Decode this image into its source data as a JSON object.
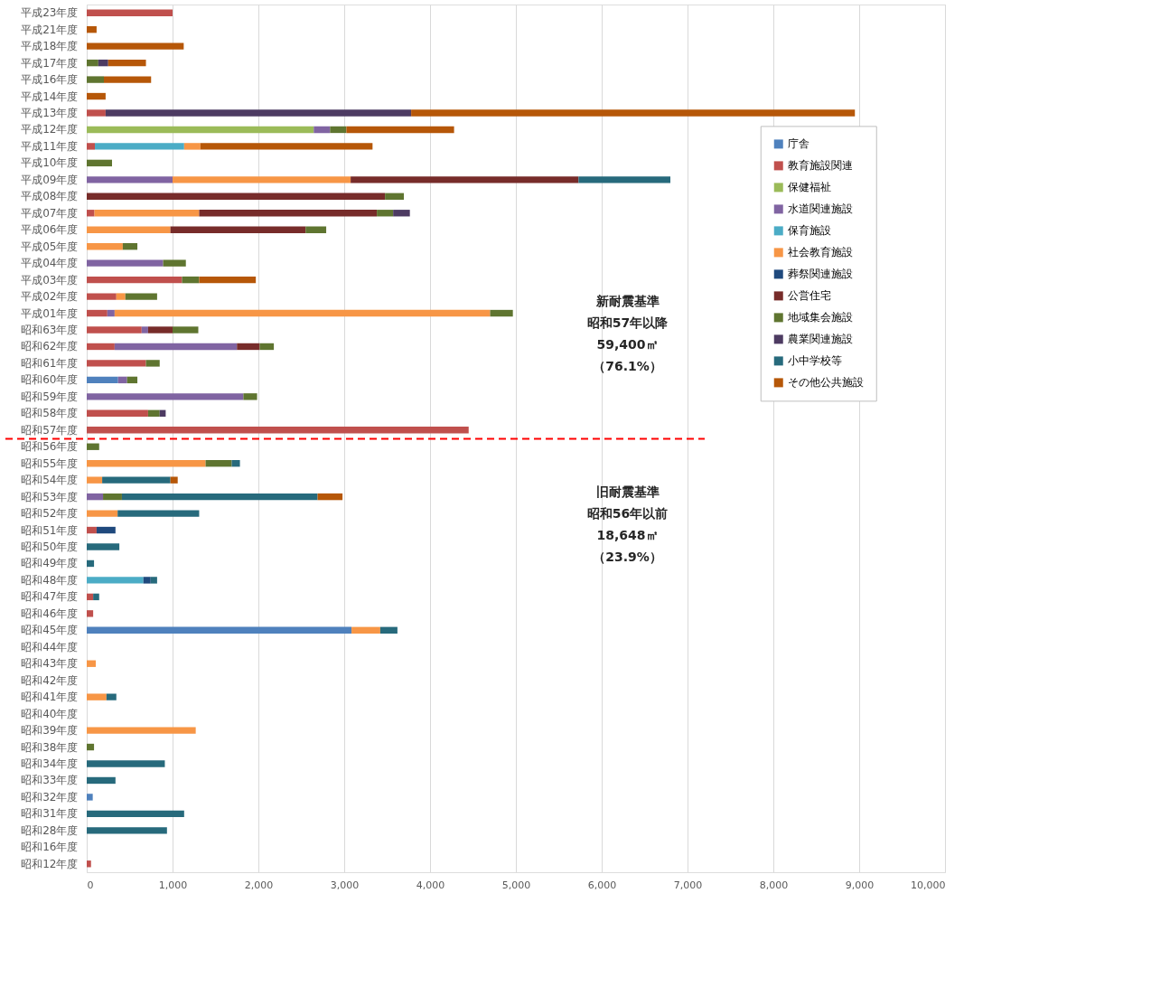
{
  "chart_data": {
    "type": "bar",
    "orientation": "horizontal",
    "stacked": true,
    "categories": [
      "平成23年度",
      "平成21年度",
      "平成18年度",
      "平成17年度",
      "平成16年度",
      "平成14年度",
      "平成13年度",
      "平成12年度",
      "平成11年度",
      "平成10年度",
      "平成09年度",
      "平成08年度",
      "平成07年度",
      "平成06年度",
      "平成05年度",
      "平成04年度",
      "平成03年度",
      "平成02年度",
      "平成01年度",
      "昭和63年度",
      "昭和62年度",
      "昭和61年度",
      "昭和60年度",
      "昭和59年度",
      "昭和58年度",
      "昭和57年度",
      "昭和56年度",
      "昭和55年度",
      "昭和54年度",
      "昭和53年度",
      "昭和52年度",
      "昭和51年度",
      "昭和50年度",
      "昭和49年度",
      "昭和48年度",
      "昭和47年度",
      "昭和46年度",
      "昭和45年度",
      "昭和44年度",
      "昭和43年度",
      "昭和42年度",
      "昭和41年度",
      "昭和40年度",
      "昭和39年度",
      "昭和38年度",
      "昭和34年度",
      "昭和33年度",
      "昭和32年度",
      "昭和31年度",
      "昭和28年度",
      "昭和16年度",
      "昭和12年度"
    ],
    "series": [
      {
        "name": "庁舎",
        "color": "#4f81bd",
        "values": [
          null,
          null,
          null,
          null,
          null,
          null,
          null,
          null,
          null,
          null,
          null,
          null,
          null,
          null,
          null,
          null,
          null,
          null,
          null,
          null,
          null,
          null,
          365,
          null,
          null,
          null,
          null,
          null,
          null,
          null,
          null,
          null,
          null,
          null,
          null,
          null,
          null,
          3085,
          null,
          null,
          null,
          null,
          null,
          null,
          null,
          null,
          null,
          70,
          null,
          null,
          null,
          null
        ]
      },
      {
        "name": "教育施設関連",
        "color": "#c0504d",
        "values": [
          1000,
          null,
          null,
          null,
          null,
          null,
          220,
          null,
          95,
          null,
          null,
          null,
          90,
          null,
          null,
          null,
          1110,
          345,
          240,
          640,
          325,
          690,
          null,
          null,
          715,
          4450,
          null,
          null,
          null,
          null,
          null,
          115,
          null,
          null,
          null,
          75,
          75,
          null,
          null,
          null,
          null,
          null,
          null,
          null,
          null,
          null,
          null,
          null,
          null,
          null,
          null,
          50
        ]
      },
      {
        "name": "保健福祉",
        "color": "#9bbb59",
        "values": [
          null,
          null,
          null,
          null,
          null,
          null,
          null,
          2645,
          null,
          null,
          null,
          null,
          null,
          null,
          null,
          null,
          null,
          null,
          null,
          null,
          null,
          null,
          null,
          null,
          null,
          null,
          null,
          null,
          null,
          null,
          null,
          null,
          null,
          null,
          null,
          null,
          null,
          null,
          null,
          null,
          null,
          null,
          null,
          null,
          null,
          null,
          null,
          null,
          null,
          null,
          null,
          null
        ]
      },
      {
        "name": "水道関連施設",
        "color": "#8064a2",
        "values": [
          null,
          null,
          null,
          null,
          null,
          null,
          null,
          190,
          null,
          null,
          1000,
          null,
          null,
          null,
          null,
          890,
          null,
          null,
          85,
          75,
          1425,
          null,
          105,
          1825,
          null,
          null,
          null,
          null,
          null,
          190,
          null,
          null,
          null,
          null,
          null,
          null,
          null,
          null,
          null,
          null,
          null,
          null,
          null,
          null,
          null,
          null,
          null,
          null,
          null,
          null,
          null,
          null
        ]
      },
      {
        "name": "保育施設",
        "color": "#4bacc6",
        "values": [
          null,
          null,
          null,
          null,
          null,
          null,
          null,
          null,
          1040,
          null,
          null,
          null,
          null,
          null,
          null,
          null,
          null,
          null,
          null,
          null,
          null,
          null,
          null,
          null,
          null,
          null,
          null,
          null,
          null,
          null,
          null,
          null,
          null,
          null,
          660,
          null,
          null,
          null,
          null,
          null,
          null,
          null,
          null,
          null,
          null,
          null,
          null,
          null,
          null,
          null,
          null,
          null
        ]
      },
      {
        "name": "社会教育施設",
        "color": "#f79646",
        "values": [
          null,
          null,
          null,
          null,
          null,
          null,
          null,
          null,
          190,
          null,
          2075,
          null,
          1220,
          975,
          420,
          null,
          null,
          105,
          4375,
          null,
          null,
          null,
          null,
          null,
          null,
          null,
          null,
          1385,
          180,
          null,
          360,
          null,
          null,
          null,
          null,
          null,
          null,
          335,
          null,
          105,
          null,
          230,
          null,
          1270,
          null,
          null,
          null,
          null,
          null,
          null,
          null,
          null
        ]
      },
      {
        "name": "葬祭関連施設",
        "color": "#1f497d",
        "values": [
          null,
          null,
          null,
          null,
          null,
          null,
          null,
          null,
          null,
          null,
          null,
          null,
          null,
          null,
          null,
          null,
          null,
          null,
          null,
          null,
          null,
          null,
          null,
          null,
          null,
          null,
          null,
          null,
          null,
          null,
          null,
          220,
          null,
          null,
          85,
          null,
          null,
          null,
          null,
          null,
          null,
          null,
          null,
          null,
          null,
          null,
          null,
          null,
          null,
          null,
          null,
          null
        ]
      },
      {
        "name": "公営住宅",
        "color": "#772c2a",
        "values": [
          null,
          null,
          null,
          null,
          null,
          null,
          null,
          null,
          null,
          null,
          2655,
          3475,
          2070,
          1575,
          null,
          null,
          null,
          null,
          null,
          285,
          265,
          null,
          null,
          null,
          null,
          null,
          null,
          null,
          null,
          null,
          null,
          null,
          null,
          null,
          null,
          null,
          null,
          null,
          null,
          null,
          null,
          null,
          null,
          null,
          null,
          null,
          null,
          null,
          null,
          null,
          null,
          null
        ]
      },
      {
        "name": "地域集会施設",
        "color": "#5f7530",
        "values": [
          null,
          null,
          null,
          135,
          200,
          null,
          null,
          190,
          null,
          295,
          null,
          220,
          190,
          240,
          170,
          265,
          200,
          370,
          265,
          300,
          165,
          160,
          120,
          160,
          135,
          null,
          145,
          305,
          null,
          220,
          null,
          null,
          null,
          null,
          null,
          null,
          null,
          null,
          null,
          null,
          null,
          null,
          null,
          null,
          85,
          null,
          null,
          null,
          null,
          null,
          null,
          null
        ]
      },
      {
        "name": "農業関連施設",
        "color": "#4d3b62",
        "values": [
          null,
          null,
          null,
          115,
          null,
          null,
          3560,
          null,
          null,
          null,
          null,
          null,
          195,
          null,
          null,
          null,
          null,
          null,
          null,
          null,
          null,
          null,
          null,
          null,
          70,
          null,
          null,
          null,
          null,
          null,
          null,
          null,
          null,
          null,
          null,
          null,
          null,
          null,
          null,
          null,
          null,
          null,
          null,
          null,
          null,
          null,
          null,
          null,
          null,
          null,
          null,
          null
        ]
      },
      {
        "name": "小中学校等",
        "color": "#276a7c",
        "values": [
          null,
          null,
          null,
          null,
          null,
          null,
          null,
          null,
          null,
          null,
          1070,
          null,
          null,
          null,
          null,
          null,
          null,
          null,
          null,
          null,
          null,
          null,
          null,
          null,
          null,
          null,
          null,
          95,
          795,
          2280,
          950,
          null,
          380,
          85,
          75,
          70,
          null,
          200,
          null,
          null,
          null,
          115,
          null,
          null,
          null,
          910,
          335,
          null,
          1135,
          935,
          null,
          null
        ]
      },
      {
        "name": "その他公共施設",
        "color": "#b65708",
        "values": [
          null,
          115,
          1130,
          440,
          550,
          220,
          5170,
          1255,
          2005,
          null,
          null,
          null,
          null,
          null,
          null,
          null,
          660,
          null,
          null,
          null,
          null,
          null,
          null,
          null,
          null,
          null,
          null,
          null,
          85,
          290,
          null,
          null,
          null,
          null,
          null,
          null,
          null,
          null,
          null,
          null,
          null,
          null,
          null,
          null,
          null,
          null,
          null,
          null,
          null,
          null,
          null,
          null
        ]
      }
    ],
    "xlim": [
      0,
      10000
    ],
    "xticks": [
      0,
      {
        "value": 1000,
        "label": "1,000"
      },
      {
        "value": 2000,
        "label": "2,000"
      },
      {
        "value": 3000,
        "label": "3,000"
      },
      {
        "value": 4000,
        "label": "4,000"
      },
      {
        "value": 5000,
        "label": "5,000"
      },
      {
        "value": 6000,
        "label": "6,000"
      },
      {
        "value": 7000,
        "label": "7,000"
      },
      {
        "value": 8000,
        "label": "8,000"
      },
      {
        "value": 9000,
        "label": "9,000"
      },
      {
        "value": 10000,
        "label": "10,000"
      }
    ],
    "grid": "x",
    "legend": "right",
    "ref_lines": [
      {
        "axis": "y",
        "value": "昭和56年度",
        "color": "#ff0000",
        "line_style": "dashed"
      }
    ],
    "annotations": [
      "新耐震基準",
      "昭和57年以降",
      "59,400㎡",
      "（76.1%）",
      "旧耐震基準",
      "昭和56年以前",
      "18,648㎡",
      "（23.9%）"
    ]
  }
}
